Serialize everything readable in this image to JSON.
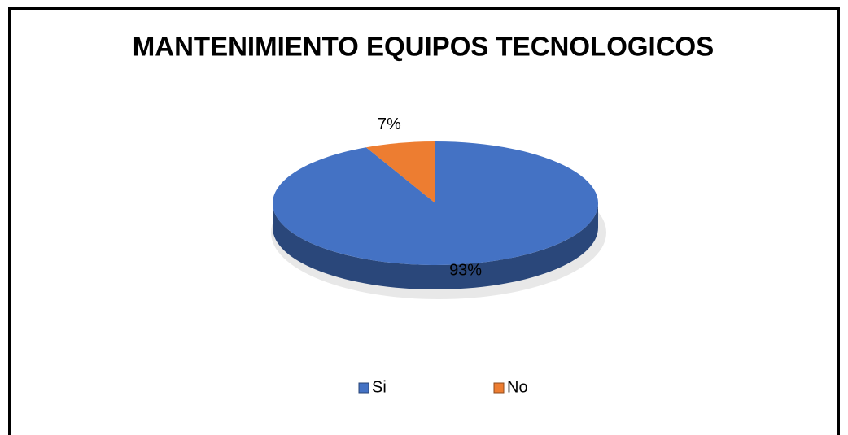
{
  "chart_data": {
    "type": "pie",
    "title": "MANTENIMIENTO EQUIPOS TECNOLOGICOS",
    "categories": [
      "Si",
      "No"
    ],
    "values": [
      93,
      7
    ],
    "value_labels": [
      "93%",
      "7%"
    ],
    "colors": [
      "#4472c4",
      "#ed7d31"
    ],
    "legend": "bottom"
  }
}
